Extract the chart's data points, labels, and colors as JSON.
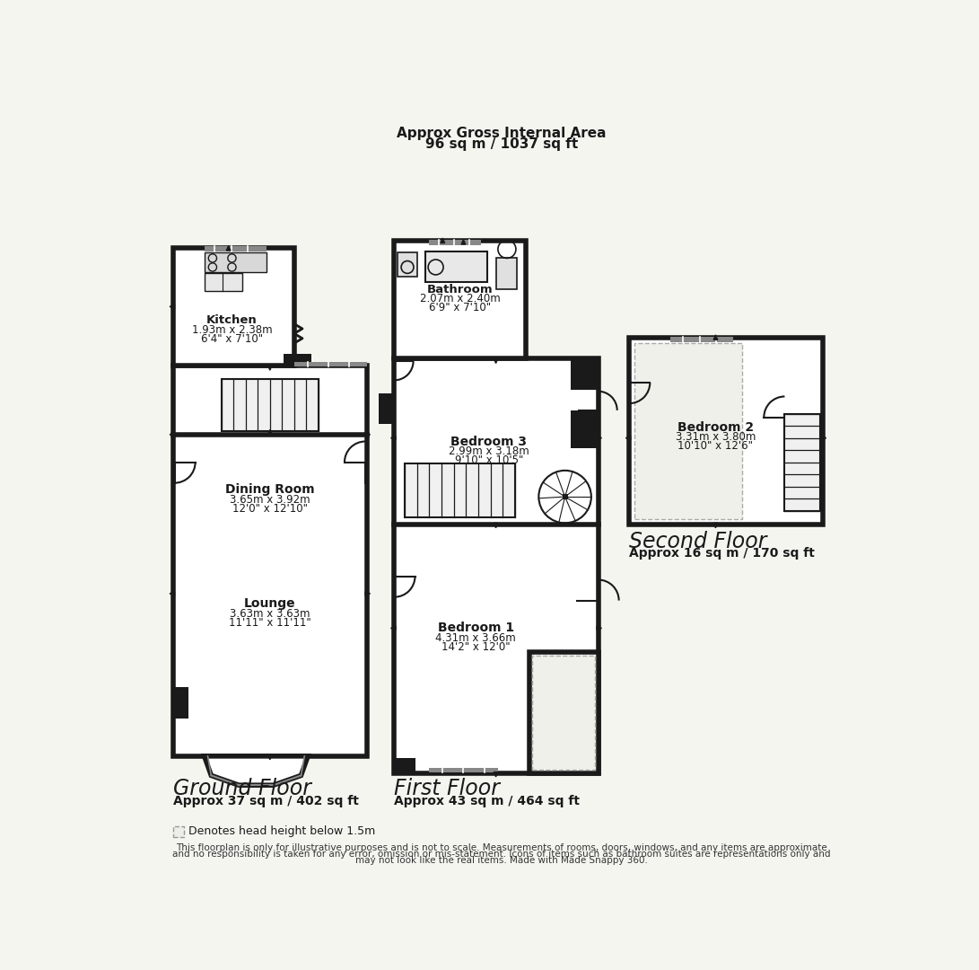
{
  "title_line1": "Approx Gross Internal Area",
  "title_line2": "96 sq m / 1037 sq ft",
  "bg_color": "#f5f5f0",
  "wall_color": "#1a1a1a",
  "floor_color": "#ffffff",
  "ground_floor_label": "Ground Floor",
  "ground_floor_area": "Approx 37 sq m / 402 sq ft",
  "first_floor_label": "First Floor",
  "first_floor_area": "Approx 43 sq m / 464 sq ft",
  "second_floor_label": "Second Floor",
  "second_floor_area": "Approx 16 sq m / 170 sq ft",
  "disclaimer_line1": "This floorplan is only for illustrative purposes and is not to scale. Measurements of rooms, doors, windows, and any items are approximate",
  "disclaimer_line2": "and no responsibility is taken for any error, omission or mis-statement. Icons of items such as bathroom suites are representations only and",
  "disclaimer_line3": "may not look like the real items. Made with Made Snappy 360.",
  "legend_text": "Denotes head height below 1.5m",
  "kitchen_name": "Kitchen",
  "kitchen_dim1": "1.93m x 2.38m",
  "kitchen_dim2": "6'4\" x 7'10\"",
  "dining_name": "Dining Room",
  "dining_dim1": "3.65m x 3.92m",
  "dining_dim2": "12'0\" x 12'10\"",
  "lounge_name": "Lounge",
  "lounge_dim1": "3.63m x 3.63m",
  "lounge_dim2": "11'11\" x 11'11\"",
  "bathroom_name": "Bathroom",
  "bathroom_dim1": "2.07m x 2.40m",
  "bathroom_dim2": "6'9\" x 7'10\"",
  "bedroom3_name": "Bedroom 3",
  "bedroom3_dim1": "2.99m x 3.18m",
  "bedroom3_dim2": "9'10\" x 10'5\"",
  "bedroom1_name": "Bedroom 1",
  "bedroom1_dim1": "4.31m x 3.66m",
  "bedroom1_dim2": "14'2\" x 12'0\"",
  "bedroom2_name": "Bedroom 2",
  "bedroom2_dim1": "3.31m x 3.80m",
  "bedroom2_dim2": "10'10\" x 12'6\""
}
